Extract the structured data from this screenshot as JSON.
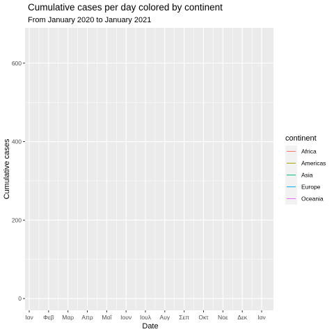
{
  "chart_data": {
    "type": "line",
    "title": "Cumulative cases per day colored by continent",
    "subtitle": "From January 2020 to January 2021",
    "xlabel": "Date",
    "ylabel": "Cumulative cases",
    "x_ticks": [
      "Ιαν",
      "Φεβ",
      "Μαρ",
      "Απρ",
      "Μαΐ",
      "Ιουν",
      "Ιουλ",
      "Αυγ",
      "Σεπ",
      "Οκτ",
      "Νοε",
      "Δεκ",
      "Ιαν"
    ],
    "xlim": [
      "2020-01-01",
      "2021-01-01"
    ],
    "y_ticks": [
      0,
      200,
      400,
      600
    ],
    "ylim": [
      -30,
      690
    ],
    "grid": true,
    "legend": {
      "title": "continent",
      "position": "right"
    },
    "series": [
      {
        "name": "Africa",
        "color": "#F8766D",
        "values": []
      },
      {
        "name": "Americas",
        "color": "#A3A500",
        "values": []
      },
      {
        "name": "Asia",
        "color": "#00BF7D",
        "values": []
      },
      {
        "name": "Europe",
        "color": "#00B0F6",
        "values": []
      },
      {
        "name": "Oceania",
        "color": "#E76BF3",
        "values": []
      }
    ]
  }
}
